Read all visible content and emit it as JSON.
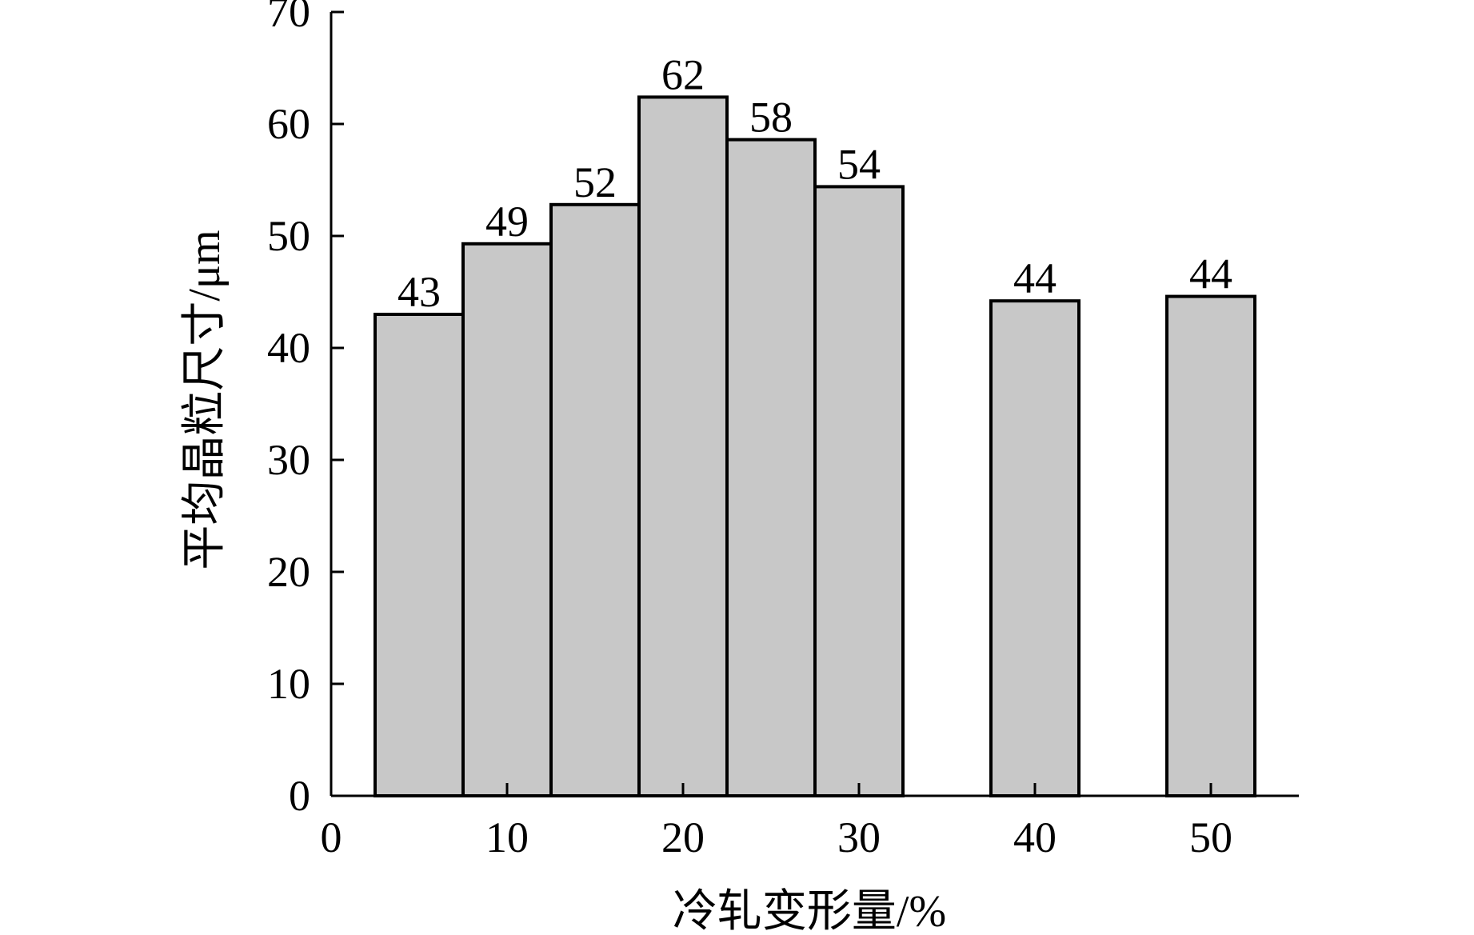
{
  "chart_data": {
    "type": "bar",
    "title": "",
    "xlabel": "冷轧变形量/%",
    "ylabel": "平均晶粒尺寸/μm",
    "x": [
      5,
      10,
      15,
      20,
      25,
      30,
      40,
      50
    ],
    "values": [
      43,
      49,
      52,
      62,
      58,
      54,
      44,
      44
    ],
    "bar_value_labels": [
      "43",
      "49",
      "52",
      "62",
      "58",
      "54",
      "44",
      "44"
    ],
    "bar_heights_estimated": [
      43.0,
      49.3,
      52.8,
      62.4,
      58.6,
      54.4,
      44.2,
      44.6
    ],
    "bar_width_units": 5,
    "xlim": [
      0,
      55
    ],
    "ylim": [
      0,
      70
    ],
    "xticks": [
      0,
      10,
      20,
      30,
      40,
      50
    ],
    "xtick_labels": [
      "0",
      "10",
      "20",
      "30",
      "40",
      "50"
    ],
    "yticks": [
      0,
      10,
      20,
      30,
      40,
      50,
      60,
      70
    ],
    "ytick_labels": [
      "0",
      "10",
      "20",
      "30",
      "40",
      "50",
      "60",
      "70"
    ],
    "grid": false,
    "legend": "none",
    "bar_color": "#c8c8c8",
    "edge_color": "#000000"
  }
}
